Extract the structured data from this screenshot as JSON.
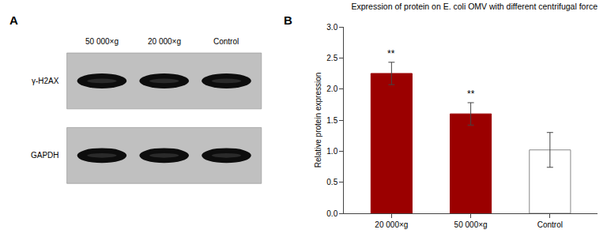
{
  "chart_data": [
    {
      "type": "blot",
      "title": "A",
      "categories": [
        "50 000×g",
        "20 000×g",
        "Control"
      ],
      "annotations": [
        "γ-H2AX",
        "GAPDH"
      ]
    },
    {
      "type": "bar",
      "title": "Expression of protein on E. coli OMV with different centrifugal force",
      "ylabel": "Relative protein expression",
      "categories": [
        "20 000×g",
        "50 000×g",
        "Control"
      ],
      "values": [
        2.25,
        1.6,
        1.02
      ],
      "errors": [
        0.18,
        0.18,
        0.28
      ],
      "colors": [
        "#9b0000",
        "#9b0000",
        "#ffffff"
      ],
      "ylim": [
        0.0,
        3.0
      ],
      "yticks": [
        {
          "value": 0,
          "label": "0.0"
        },
        0.5,
        {
          "value": 1,
          "label": "1.0"
        },
        1.5,
        {
          "value": 2,
          "label": "2.0"
        },
        2.5,
        {
          "value": 3,
          "label": "3.0"
        }
      ],
      "grid": false,
      "annotations": [
        "B",
        {
          "x": "20 000×g",
          "text": "**"
        },
        {
          "x": "50 000×g",
          "text": "**"
        }
      ]
    }
  ]
}
